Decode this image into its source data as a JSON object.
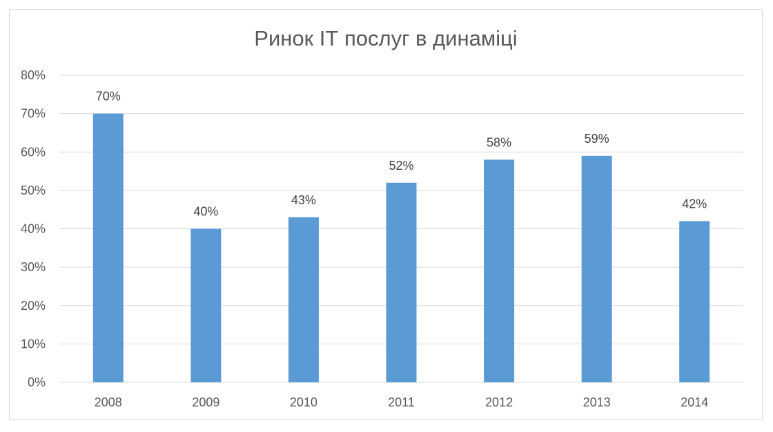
{
  "chart_data": {
    "type": "bar",
    "title": "Ринок ІТ послуг в динаміці",
    "categories": [
      "2008",
      "2009",
      "2010",
      "2011",
      "2012",
      "2013",
      "2014"
    ],
    "series": [
      {
        "values": [
          70,
          40,
          43,
          52,
          58,
          59,
          42
        ],
        "data_labels": [
          "70%",
          "40%",
          "43%",
          "52%",
          "58%",
          "59%",
          "42%"
        ],
        "color": "#5b9bd5"
      }
    ],
    "ylim": [
      0,
      80
    ],
    "yticks": [
      0,
      10,
      20,
      30,
      40,
      50,
      60,
      70,
      80
    ],
    "ytick_labels": [
      "0%",
      "10%",
      "20%",
      "30%",
      "40%",
      "50%",
      "60%",
      "70%",
      "80%"
    ],
    "xlabel": "",
    "ylabel": "",
    "grid": true,
    "legend": "none",
    "colors": {
      "bar": "#5b9bd5",
      "grid": "#d9d9d9",
      "text": "#595959"
    }
  }
}
